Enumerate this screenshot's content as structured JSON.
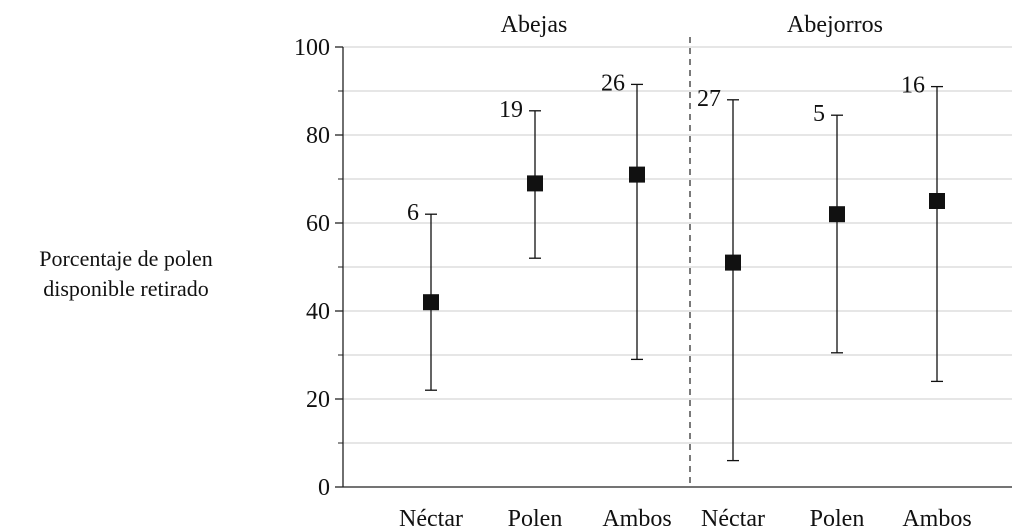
{
  "chart_data": {
    "type": "scatter",
    "ylabel_lines": [
      "Porcentaje de polen",
      "disponible retirado"
    ],
    "ylim": [
      0,
      100
    ],
    "y_ticks": [
      0,
      20,
      40,
      60,
      80,
      100
    ],
    "y_minor_ticks": [
      10,
      30,
      50,
      70,
      90
    ],
    "grid": false,
    "groups": [
      {
        "name": "Abejas",
        "points": [
          {
            "category": "Néctar",
            "mean": 42,
            "lower": 22,
            "upper": 62,
            "n": "6"
          },
          {
            "category": "Polen",
            "mean": 69,
            "lower": 52,
            "upper": 85.5,
            "n": "19"
          },
          {
            "category": "Ambos",
            "mean": 71,
            "lower": 29,
            "upper": 91.5,
            "n": "26"
          }
        ]
      },
      {
        "name": "Abejorros",
        "points": [
          {
            "category": "Néctar",
            "mean": 51,
            "lower": 6,
            "upper": 88,
            "n": "27"
          },
          {
            "category": "Polen",
            "mean": 62,
            "lower": 30.5,
            "upper": 84.5,
            "n": "5"
          },
          {
            "category": "Ambos",
            "mean": 65,
            "lower": 24,
            "upper": 91,
            "n": "16"
          }
        ]
      }
    ],
    "colors": {
      "ink": "#111111",
      "axis": "#222222",
      "gridline": "#cccccc"
    }
  }
}
